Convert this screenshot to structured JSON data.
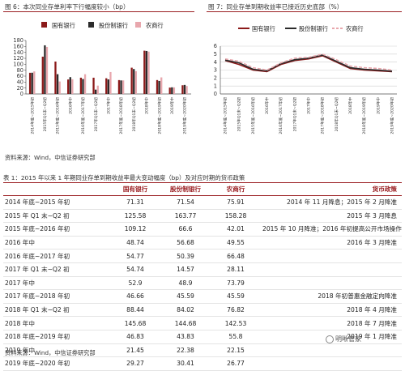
{
  "figure6": {
    "title": "图 6：本次同业存单利率下行幅度较小（bp）"
  },
  "figure7": {
    "title": "图 7：同业存单到期收益率已接近历史底部（%）"
  },
  "source_top": "资料来源：Wind，中信证券研究部",
  "table": {
    "caption": "表 1：2015 年以来 1 年期同业存单到期收益率最大变动幅度（bp）及对应时期的货币政策",
    "headers": [
      "",
      "国有银行",
      "股份制银行",
      "农商行",
      "货币政策"
    ],
    "rows": [
      {
        "period": "2014 年底~2015 年初",
        "gy": "71.31",
        "gf": "71.54",
        "ns": "75.91",
        "policy": "2014 年 11 月降息；2015 年 2 月降准"
      },
      {
        "period": "2015 年 Q1 末~Q2 初",
        "gy": "125.58",
        "gf": "163.77",
        "ns": "158.28",
        "policy": "2015 年 3 月降息"
      },
      {
        "period": "2015 年底~2016 年初",
        "gy": "109.12",
        "gf": "66.6",
        "ns": "42.01",
        "policy": "2015 年 10 月降准；2016 年初提高公开市场操作频率"
      },
      {
        "period": "2016 年中",
        "gy": "48.74",
        "gf": "56.68",
        "ns": "49.55",
        "policy": "2016 年 3 月降准"
      },
      {
        "period": "2016 年底~2017 年初",
        "gy": "54.77",
        "gf": "50.39",
        "ns": "66.48",
        "policy": ""
      },
      {
        "period": "2017 年 Q1 末~Q2 初",
        "gy": "54.74",
        "gf": "14.57",
        "ns": "28.11",
        "policy": ""
      },
      {
        "period": "2017 年中",
        "gy": "52.9",
        "gf": "48.9",
        "ns": "73.79",
        "policy": ""
      },
      {
        "period": "2017 年底~2018 年初",
        "gy": "46.66",
        "gf": "45.59",
        "ns": "45.59",
        "policy": "2018 年初普惠金融定向降准"
      },
      {
        "period": "2018 年 Q1 末~Q2 初",
        "gy": "88.44",
        "gf": "84.02",
        "ns": "76.82",
        "policy": "2018 年 4 月降准"
      },
      {
        "period": "2018 年中",
        "gy": "145.68",
        "gf": "144.68",
        "ns": "142.53",
        "policy": "2018 年 7 月降准"
      },
      {
        "period": "2018 年底~2019 年初",
        "gy": "46.83",
        "gf": "43.83",
        "ns": "55.8",
        "policy": "2019 年 1 月降准"
      },
      {
        "period": "2019 年中",
        "gy": "21.45",
        "gf": "22.38",
        "ns": "22.15",
        "policy": ""
      },
      {
        "period": "2019 年底~2020 年初",
        "gy": "29.27",
        "gf": "30.41",
        "ns": "26.77",
        "policy": ""
      }
    ]
  },
  "source_bottom": "资料来源：Wind，中信证券研究部",
  "watermark": "明晰管家",
  "chart_data": [
    {
      "type": "bar",
      "title": "图 6：本次同业存单利率下行幅度较小（bp）",
      "categories": [
        "2014年底~2015年初",
        "2015年Q1末~Q2初",
        "2015年底~2016年初",
        "2016年中",
        "2016年底~2017年初",
        "2017年Q1末~Q2初",
        "2017年中",
        "2017年底~2018年初",
        "2018年Q1末~Q2初",
        "2018年中",
        "2018年底~2019年初",
        "2019年中",
        "2019年底~2020年初"
      ],
      "series": [
        {
          "name": "国有银行",
          "color": "#8b1a1a",
          "values": [
            71.31,
            125.58,
            109.12,
            48.74,
            54.77,
            54.74,
            52.9,
            46.66,
            88.44,
            145.68,
            46.83,
            21.45,
            29.27
          ]
        },
        {
          "name": "股份制银行",
          "color": "#2b2b2b",
          "values": [
            71.54,
            163.77,
            66.6,
            56.68,
            50.39,
            14.57,
            48.9,
            45.59,
            84.02,
            144.68,
            43.83,
            22.38,
            30.41
          ]
        },
        {
          "name": "农商行",
          "color": "#e8a7ad",
          "values": [
            75.91,
            158.28,
            42.01,
            49.55,
            66.48,
            28.11,
            73.79,
            45.59,
            76.82,
            142.53,
            55.8,
            22.15,
            26.77
          ]
        }
      ],
      "yticks": [
        0,
        20,
        40,
        60,
        80,
        100,
        120,
        140,
        160,
        180
      ],
      "ylim": [
        0,
        180
      ],
      "legend": "top"
    },
    {
      "type": "line",
      "title": "图 7：同业存单到期收益率已接近历史底部（%）",
      "x": [
        "2014年底~2015年初",
        "2015年Q1末~Q2初",
        "2015年底~2016年初",
        "2016年中",
        "2016年底~2017年初",
        "2017年Q1末~Q2初",
        "2017年中",
        "2017年底~2018年初",
        "2018年Q1末~Q2初",
        "2018年中",
        "2018年底~2019年初",
        "2019年中",
        "2019年底~2020年初"
      ],
      "series": [
        {
          "name": "国有银行",
          "color": "#8b1a1a",
          "dash": "solid",
          "values": [
            4.2,
            3.7,
            3.0,
            2.8,
            3.7,
            4.2,
            4.4,
            4.8,
            4.0,
            3.2,
            3.0,
            2.9,
            2.8
          ]
        },
        {
          "name": "股份制银行",
          "color": "#2b2b2b",
          "dash": "solid",
          "values": [
            4.25,
            3.9,
            3.1,
            2.9,
            3.8,
            4.3,
            4.5,
            4.9,
            4.1,
            3.3,
            3.1,
            3.0,
            2.85
          ]
        },
        {
          "name": "农商行",
          "color": "#e8a7ad",
          "dash": "dashed",
          "values": [
            4.4,
            4.1,
            3.3,
            3.0,
            3.9,
            4.5,
            4.6,
            5.0,
            4.3,
            3.5,
            3.3,
            3.2,
            3.0
          ]
        }
      ],
      "yticks": [
        0,
        1,
        2,
        3,
        4,
        5,
        6
      ],
      "ylim": [
        0,
        6
      ],
      "grid": true,
      "legend": "top"
    }
  ]
}
